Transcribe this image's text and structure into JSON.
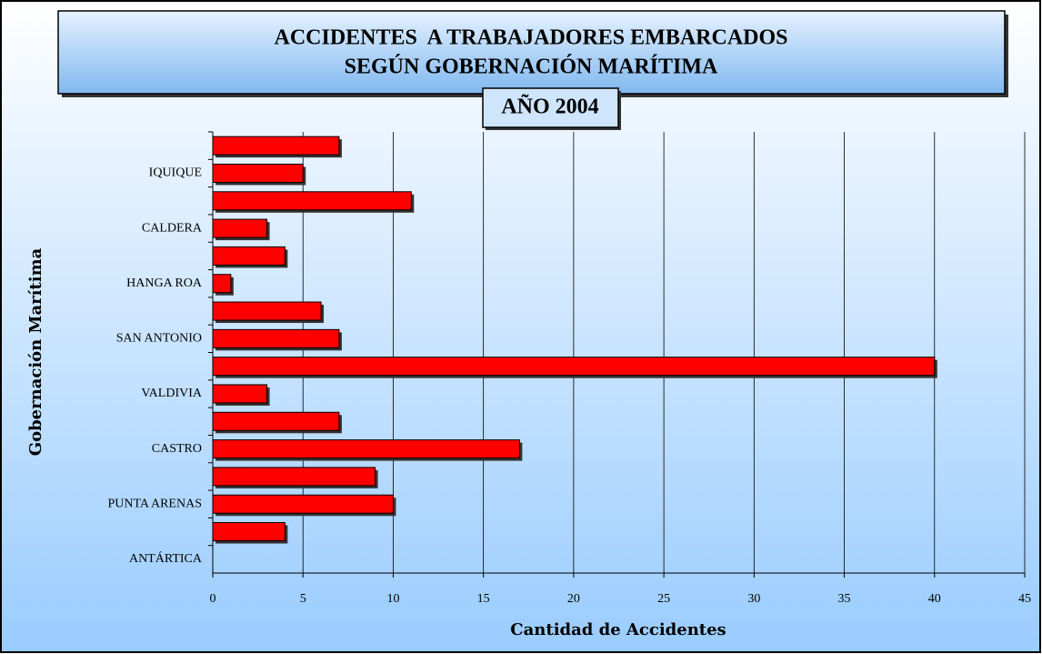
{
  "chart_data": {
    "type": "bar",
    "orientation": "horizontal",
    "title": [
      "ACCIDENTES  A TRABAJADORES EMBARCADOS",
      "SEGÚN GOBERNACIÓN MARÍTIMA"
    ],
    "subtitle": "AÑO 2004",
    "x_label": "Cantidad de Accidentes",
    "y_label": "Gobernación Marítima",
    "categories": [
      null,
      "IQUIQUE",
      null,
      "CALDERA",
      null,
      "HANGA ROA",
      null,
      "SAN ANTONIO",
      null,
      "VALDIVIA",
      null,
      "CASTRO",
      null,
      "PUNTA ARENAS",
      null,
      "ANTÁRTICA"
    ],
    "values": [
      7,
      5,
      11,
      3,
      4,
      1,
      6,
      7,
      40,
      3,
      7,
      17,
      9,
      10,
      4,
      0
    ],
    "color": "#ff0000",
    "xlim": [
      0,
      45
    ],
    "xticks": [
      0,
      5,
      10,
      15,
      20,
      25,
      30,
      35,
      40,
      45
    ],
    "grid": true
  }
}
